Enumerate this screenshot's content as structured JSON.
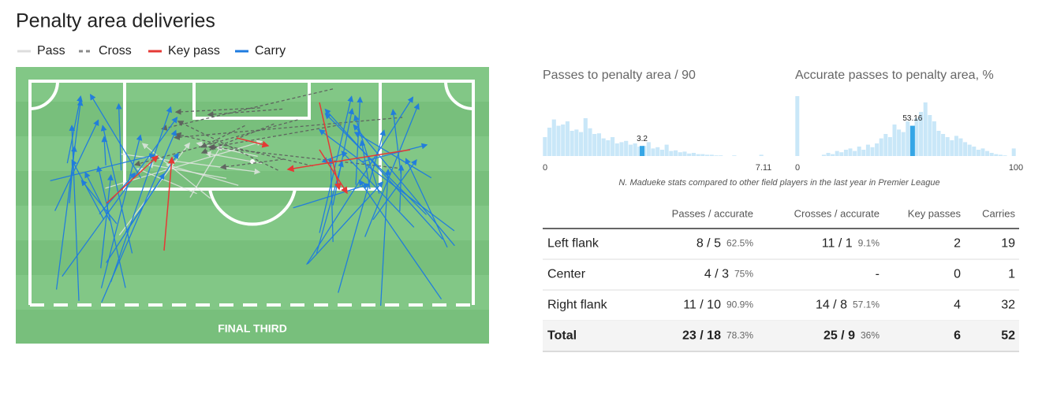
{
  "header": {
    "title": "Penalty area deliveries"
  },
  "legend": [
    {
      "name": "Pass",
      "color": "#dddddd",
      "style": "solid"
    },
    {
      "name": "Cross",
      "color": "#8a8a8a",
      "style": "dashed"
    },
    {
      "name": "Key pass",
      "color": "#e53935",
      "style": "solid"
    },
    {
      "name": "Carry",
      "color": "#1e7be0",
      "style": "solid"
    }
  ],
  "pitch": {
    "label": "FINAL THIRD"
  },
  "chart_data": [
    {
      "type": "histogram",
      "title": "Passes to penalty area / 90",
      "xlim": [
        0,
        7.11
      ],
      "xticks": [
        0,
        7.11
      ],
      "color": "#c9e7f8",
      "highlight_color": "#35a6e6",
      "values": [
        30,
        45,
        58,
        48,
        50,
        55,
        40,
        42,
        38,
        60,
        44,
        35,
        36,
        28,
        25,
        30,
        20,
        22,
        24,
        18,
        20,
        15,
        16,
        22,
        12,
        14,
        10,
        18,
        8,
        9,
        6,
        7,
        4,
        5,
        3,
        3,
        2,
        2,
        1,
        1,
        0,
        0,
        1,
        0,
        0,
        0,
        0,
        0,
        2
      ],
      "player_value": 3.2
    },
    {
      "type": "histogram",
      "title": "Accurate passes to penalty area, %",
      "xlim": [
        0,
        100
      ],
      "xticks": [
        0,
        100
      ],
      "color": "#c9e7f8",
      "highlight_color": "#35a6e6",
      "values": [
        95,
        0,
        0,
        0,
        0,
        0,
        2,
        5,
        3,
        8,
        6,
        10,
        12,
        8,
        15,
        10,
        18,
        14,
        20,
        28,
        35,
        30,
        50,
        42,
        38,
        55,
        48,
        60,
        70,
        85,
        65,
        55,
        40,
        35,
        30,
        25,
        32,
        28,
        22,
        18,
        15,
        10,
        12,
        8,
        5,
        3,
        2,
        1,
        0,
        12
      ],
      "player_value": 53.16
    }
  ],
  "caption": "N. Madueke stats compared to other field players in the last year in Premier League",
  "table": {
    "header": [
      "Passes / accurate",
      "Crosses / accurate",
      "Key passes",
      "Carries"
    ],
    "rows": [
      [
        "Left flank",
        {
          "main": "8 / 5",
          "pct": "62.5%"
        },
        {
          "main": "11 / 1",
          "pct": "9.1%"
        },
        "2",
        "19"
      ],
      [
        "Center",
        {
          "main": "4 / 3",
          "pct": "75%"
        },
        "-",
        "0",
        "1"
      ],
      [
        "Right flank",
        {
          "main": "11 / 10",
          "pct": "90.9%"
        },
        {
          "main": "14 / 8",
          "pct": "57.1%"
        },
        "4",
        "32"
      ],
      [
        "Total",
        {
          "main": "23 / 18",
          "pct": "78.3%"
        },
        {
          "main": "25 / 9",
          "pct": "36%"
        },
        "6",
        "52"
      ]
    ]
  }
}
